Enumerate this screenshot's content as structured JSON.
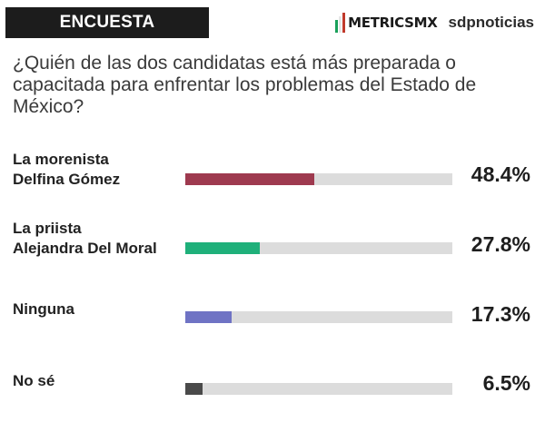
{
  "header": {
    "badge": "ENCUESTA METRICSMX",
    "logo_text": "METRICSMX",
    "partner": "sdpnoticias"
  },
  "colors": {
    "flag_green": "#1aa05a",
    "flag_white": "#e6e6e6",
    "flag_red": "#c0392b",
    "track": "#dcdcdc"
  },
  "chart_data": {
    "type": "bar",
    "orientation": "horizontal",
    "title": "¿Quién de las dos candidatas está más preparada o capacitada para enfrentar los problemas del Estado de México?",
    "xlim": [
      0,
      100
    ],
    "categories": [
      [
        "La morenista",
        "Delfina Gómez"
      ],
      [
        "La priista",
        "Alejandra Del Moral"
      ],
      [
        "Ninguna"
      ],
      [
        "No sé"
      ]
    ],
    "values": [
      48.4,
      27.8,
      17.3,
      6.5
    ],
    "value_labels": [
      "48.4%",
      "27.8%",
      "17.3%",
      "6.5%"
    ],
    "bar_colors": [
      "#9e3a4f",
      "#1fb07a",
      "#6f73c4",
      "#4a4a4a"
    ]
  }
}
